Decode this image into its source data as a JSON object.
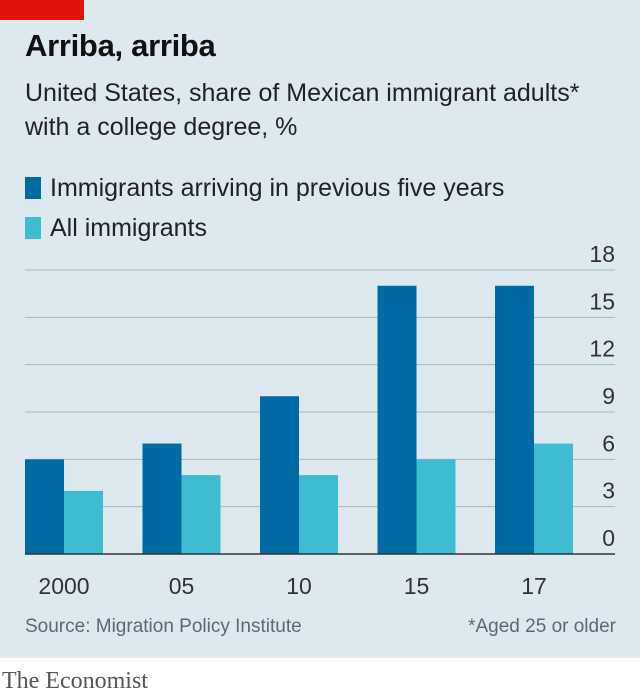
{
  "header": {
    "title": "Arriba, arriba",
    "subtitle": "United States, share of Mexican immigrant adults* with a college degree, %"
  },
  "colors": {
    "accent": "#e3120b",
    "series_dark": "#006ba2",
    "series_light": "#3ebcd2",
    "panel_background": "#dde8ef",
    "gridline": "#a8b8c2"
  },
  "chart_data": {
    "type": "bar",
    "categories": [
      "2000",
      "05",
      "10",
      "15",
      "17"
    ],
    "series": [
      {
        "name": "Immigrants arriving in previous five years",
        "values": [
          6,
          7,
          10,
          17,
          17
        ],
        "color": "#006ba2"
      },
      {
        "name": "All immigrants",
        "values": [
          4,
          5,
          5,
          6,
          7
        ],
        "color": "#3ebcd2"
      }
    ],
    "ylim": [
      0,
      18
    ],
    "yticks": [
      0,
      3,
      6,
      9,
      12,
      15,
      18
    ],
    "grid": true,
    "yaxis_position": "right",
    "legend_position": "top-left"
  },
  "footer": {
    "source": "Source: Migration Policy Institute",
    "footnote": "*Aged 25 or older",
    "brand": "The Economist"
  }
}
